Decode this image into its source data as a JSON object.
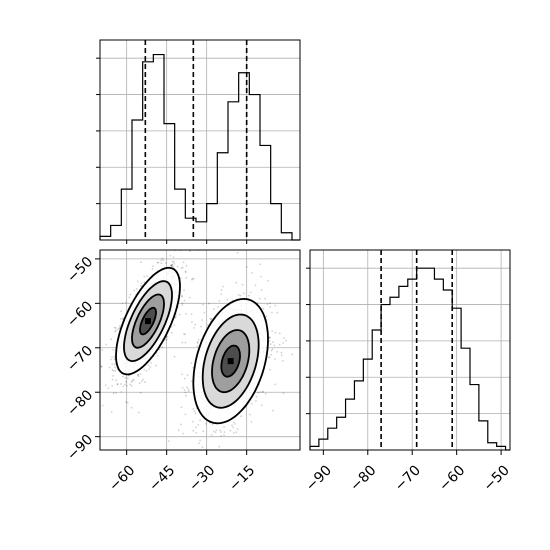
{
  "chart_data": {
    "type": "corner",
    "panels": [
      {
        "id": "hist-x",
        "type": "histogram",
        "x_range": [
          -70,
          5
        ],
        "bins": [
          {
            "x0": -70,
            "x1": -66,
            "count": 1
          },
          {
            "x0": -66,
            "x1": -62,
            "count": 4
          },
          {
            "x0": -62,
            "x1": -58,
            "count": 14
          },
          {
            "x0": -58,
            "x1": -54,
            "count": 33
          },
          {
            "x0": -54,
            "x1": -50,
            "count": 49
          },
          {
            "x0": -50,
            "x1": -46,
            "count": 51
          },
          {
            "x0": -46,
            "x1": -42,
            "count": 32
          },
          {
            "x0": -42,
            "x1": -38,
            "count": 14
          },
          {
            "x0": -38,
            "x1": -34,
            "count": 6
          },
          {
            "x0": -34,
            "x1": -30,
            "count": 5
          },
          {
            "x0": -30,
            "x1": -26,
            "count": 10
          },
          {
            "x0": -26,
            "x1": -22,
            "count": 24
          },
          {
            "x0": -22,
            "x1": -18,
            "count": 38
          },
          {
            "x0": -18,
            "x1": -14,
            "count": 46
          },
          {
            "x0": -14,
            "x1": -10,
            "count": 40
          },
          {
            "x0": -10,
            "x1": -6,
            "count": 26
          },
          {
            "x0": -6,
            "x1": -2,
            "count": 10
          },
          {
            "x0": -2,
            "x1": 2,
            "count": 2
          },
          {
            "x0": 2,
            "x1": 5,
            "count": 0
          }
        ],
        "y_max": 55,
        "y_ticks": [
          10,
          20,
          30,
          40,
          50
        ],
        "quantiles": [
          -53,
          -35,
          -15
        ]
      },
      {
        "id": "hist-y",
        "type": "histogram",
        "x_range": [
          -93,
          -48
        ],
        "bins": [
          {
            "x0": -93,
            "x1": -91,
            "count": 1
          },
          {
            "x0": -91,
            "x1": -89,
            "count": 3
          },
          {
            "x0": -89,
            "x1": -87,
            "count": 6
          },
          {
            "x0": -87,
            "x1": -85,
            "count": 9
          },
          {
            "x0": -85,
            "x1": -83,
            "count": 14
          },
          {
            "x0": -83,
            "x1": -81,
            "count": 19
          },
          {
            "x0": -81,
            "x1": -79,
            "count": 25
          },
          {
            "x0": -79,
            "x1": -77,
            "count": 33
          },
          {
            "x0": -77,
            "x1": -75,
            "count": 40
          },
          {
            "x0": -75,
            "x1": -73,
            "count": 42
          },
          {
            "x0": -73,
            "x1": -71,
            "count": 45
          },
          {
            "x0": -71,
            "x1": -69,
            "count": 47
          },
          {
            "x0": -69,
            "x1": -67,
            "count": 50
          },
          {
            "x0": -67,
            "x1": -65,
            "count": 50
          },
          {
            "x0": -65,
            "x1": -63,
            "count": 47
          },
          {
            "x0": -63,
            "x1": -61,
            "count": 44
          },
          {
            "x0": -61,
            "x1": -59,
            "count": 39
          },
          {
            "x0": -59,
            "x1": -57,
            "count": 28
          },
          {
            "x0": -57,
            "x1": -55,
            "count": 18
          },
          {
            "x0": -55,
            "x1": -53,
            "count": 8
          },
          {
            "x0": -53,
            "x1": -51,
            "count": 2
          },
          {
            "x0": -51,
            "x1": -49,
            "count": 1
          },
          {
            "x0": -49,
            "x1": -48,
            "count": 0
          }
        ],
        "y_max": 55,
        "y_ticks": [
          10,
          20,
          30,
          40,
          50
        ],
        "quantiles": [
          -77,
          -69,
          -61
        ],
        "x_ticks": [
          -90,
          -80,
          -70,
          -60,
          -50
        ],
        "x_tick_labels": [
          "−90",
          "−80",
          "−70",
          "−60",
          "−50"
        ]
      },
      {
        "id": "scatter-xy",
        "type": "scatter-contour",
        "x_range": [
          -70,
          5
        ],
        "y_range": [
          -93,
          -48
        ],
        "x_ticks": [
          -60,
          -45,
          -30,
          -15
        ],
        "x_tick_labels": [
          "−60",
          "−45",
          "−30",
          "−15"
        ],
        "y_ticks": [
          -50,
          -60,
          -70,
          -80,
          -90
        ],
        "y_tick_labels": [
          "−50",
          "−60",
          "−70",
          "−80",
          "−90"
        ],
        "clusters": [
          {
            "cx": -52,
            "cy": -64,
            "sx": 6,
            "sy": 6,
            "rho": 0.65,
            "n": 1200
          },
          {
            "cx": -21,
            "cy": -73,
            "sx": 7,
            "sy": 7,
            "rho": 0.35,
            "n": 1200
          }
        ],
        "contour_levels_sigma": [
          0.5,
          1.0,
          1.5,
          2.0
        ],
        "grid": true
      }
    ]
  }
}
